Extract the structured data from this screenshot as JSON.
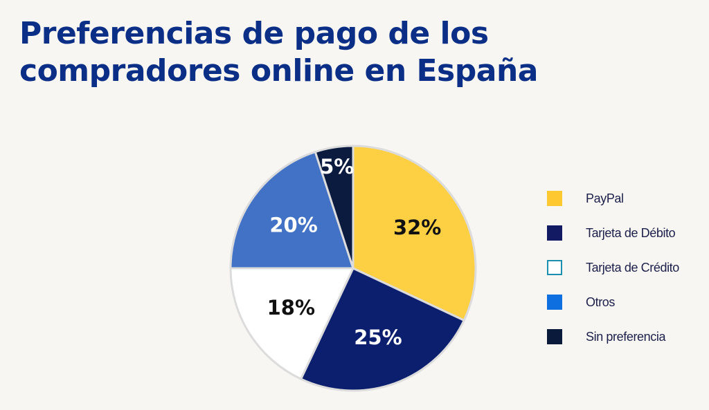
{
  "chart_data": {
    "type": "pie",
    "title_lines": [
      "Preferencias de pago de los",
      "compradores online en España"
    ],
    "labels": [
      "PayPal",
      "Tarjeta de Débito",
      "Tarjeta de Crédito",
      "Otros",
      "Sin preferencia"
    ],
    "values": [
      32,
      25,
      18,
      20,
      5
    ],
    "slice_order": [
      0,
      1,
      2,
      3,
      4
    ],
    "data_labels": [
      "32%",
      "25%",
      "18%",
      "20%",
      "5%"
    ],
    "slice_colors": [
      "#fdd043",
      "#0c1f6e",
      "#ffffff",
      "#4172c6",
      "#0b1a3f"
    ],
    "label_colors": [
      "#111111",
      "#ffffff",
      "#111111",
      "#ffffff",
      "#ffffff"
    ],
    "legend_colors": [
      "#fdc830",
      "#121a63",
      "#ffffff",
      "#0d6fe0",
      "#0a1a3a"
    ],
    "legend_border_colors": [
      "#fdc830",
      "#121a63",
      "#1b8fb0",
      "#0d6fe0",
      "#0a1a3a"
    ],
    "legend_position": "right",
    "start_angle_deg": 0,
    "direction": "clockwise"
  }
}
